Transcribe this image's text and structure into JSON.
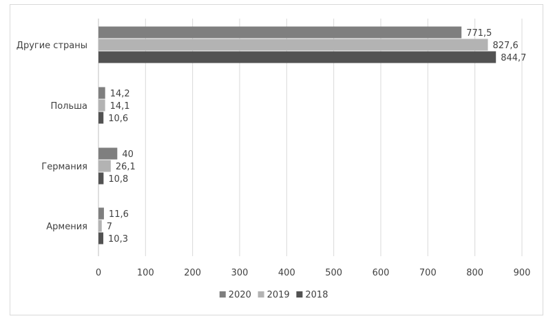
{
  "chart_data": {
    "type": "bar",
    "orientation": "horizontal",
    "categories": [
      "Другие страны",
      "Польша",
      "Германия",
      "Армения"
    ],
    "series": [
      {
        "name": "2020",
        "color": "#7f7f7f",
        "values": [
          771.5,
          14.2,
          40,
          11.6
        ],
        "labels": [
          "771,5",
          "14,2",
          "40",
          "11,6"
        ]
      },
      {
        "name": "2019",
        "color": "#b3b3b3",
        "values": [
          827.6,
          14.1,
          26.1,
          7
        ],
        "labels": [
          "827,6",
          "14,1",
          "26,1",
          "7"
        ]
      },
      {
        "name": "2018",
        "color": "#525252",
        "values": [
          844.7,
          10.6,
          10.8,
          10.3
        ],
        "labels": [
          "844,7",
          "10,6",
          "10,8",
          "10,3"
        ]
      }
    ],
    "xlim": [
      0,
      900
    ],
    "xticks": [
      0,
      100,
      200,
      300,
      400,
      500,
      600,
      700,
      800,
      900
    ],
    "xlabel": "",
    "ylabel": "",
    "title": "",
    "grid": "vertical",
    "legend_position": "bottom"
  }
}
